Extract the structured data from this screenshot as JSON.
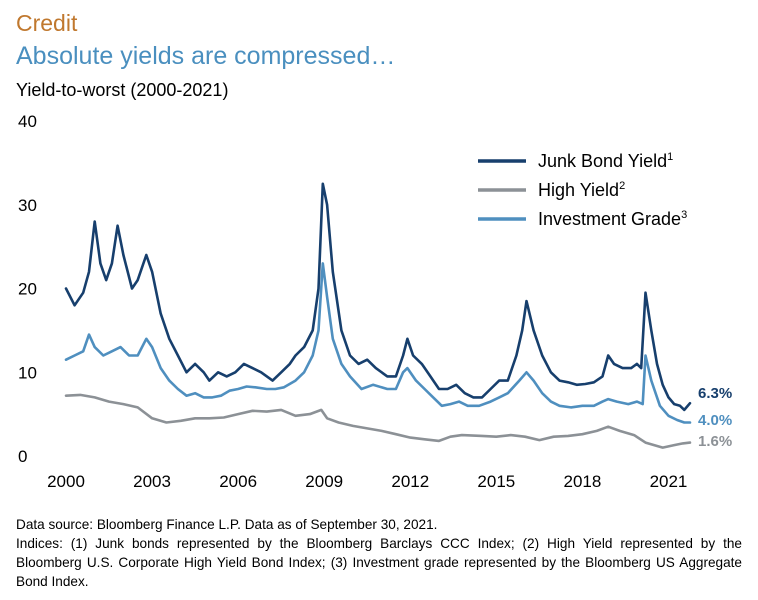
{
  "header": {
    "section": "Credit",
    "title": "Absolute yields are compressed…",
    "subtitle": "Yield-to-worst (2000-2021)"
  },
  "colors": {
    "junk": "#173f6d",
    "high_yield": "#8c9196",
    "investment_grade": "#4f8fbf"
  },
  "chart_data": {
    "type": "line",
    "title": "Yield-to-worst (2000-2021)",
    "xlabel": "",
    "ylabel": "",
    "xlim": [
      2000,
      2021.75
    ],
    "ylim": [
      0,
      40
    ],
    "x_ticks": [
      "2000",
      "2003",
      "2006",
      "2009",
      "2012",
      "2015",
      "2018",
      "2021"
    ],
    "y_ticks": [
      "0",
      "10",
      "20",
      "30",
      "40"
    ],
    "grid": false,
    "legend_position": "top-right",
    "series": [
      {
        "name": "Junk Bond Yield",
        "sup": "1",
        "color_key": "junk",
        "end_label": "6.3%",
        "points": [
          [
            2000.0,
            20
          ],
          [
            2000.3,
            18
          ],
          [
            2000.6,
            19.5
          ],
          [
            2000.8,
            22
          ],
          [
            2001.0,
            28
          ],
          [
            2001.2,
            23
          ],
          [
            2001.4,
            21
          ],
          [
            2001.6,
            23
          ],
          [
            2001.8,
            27.5
          ],
          [
            2002.0,
            24
          ],
          [
            2002.3,
            20
          ],
          [
            2002.5,
            21
          ],
          [
            2002.8,
            24
          ],
          [
            2003.0,
            22
          ],
          [
            2003.3,
            17
          ],
          [
            2003.6,
            14
          ],
          [
            2003.9,
            12
          ],
          [
            2004.2,
            10
          ],
          [
            2004.5,
            11
          ],
          [
            2004.8,
            10
          ],
          [
            2005.0,
            9
          ],
          [
            2005.3,
            10
          ],
          [
            2005.6,
            9.5
          ],
          [
            2005.9,
            10
          ],
          [
            2006.2,
            11
          ],
          [
            2006.5,
            10.5
          ],
          [
            2006.8,
            10
          ],
          [
            2007.2,
            9
          ],
          [
            2007.5,
            10
          ],
          [
            2007.8,
            11
          ],
          [
            2008.0,
            12
          ],
          [
            2008.3,
            13
          ],
          [
            2008.6,
            15
          ],
          [
            2008.8,
            20
          ],
          [
            2008.95,
            32.5
          ],
          [
            2009.1,
            30
          ],
          [
            2009.3,
            22
          ],
          [
            2009.6,
            15
          ],
          [
            2009.9,
            12
          ],
          [
            2010.2,
            11
          ],
          [
            2010.5,
            11.5
          ],
          [
            2010.8,
            10.5
          ],
          [
            2011.2,
            9.5
          ],
          [
            2011.5,
            9.5
          ],
          [
            2011.75,
            12
          ],
          [
            2011.9,
            14
          ],
          [
            2012.1,
            12
          ],
          [
            2012.4,
            11
          ],
          [
            2012.7,
            9.5
          ],
          [
            2013.0,
            8
          ],
          [
            2013.3,
            8
          ],
          [
            2013.6,
            8.5
          ],
          [
            2013.9,
            7.5
          ],
          [
            2014.2,
            7
          ],
          [
            2014.5,
            7
          ],
          [
            2014.8,
            8
          ],
          [
            2015.1,
            9
          ],
          [
            2015.4,
            9
          ],
          [
            2015.7,
            12
          ],
          [
            2015.9,
            15
          ],
          [
            2016.05,
            18.5
          ],
          [
            2016.3,
            15
          ],
          [
            2016.6,
            12
          ],
          [
            2016.9,
            10
          ],
          [
            2017.2,
            9
          ],
          [
            2017.5,
            8.8
          ],
          [
            2017.8,
            8.5
          ],
          [
            2018.1,
            8.6
          ],
          [
            2018.4,
            8.8
          ],
          [
            2018.7,
            9.5
          ],
          [
            2018.9,
            12
          ],
          [
            2019.1,
            11
          ],
          [
            2019.4,
            10.5
          ],
          [
            2019.7,
            10.5
          ],
          [
            2019.9,
            11
          ],
          [
            2020.05,
            10.5
          ],
          [
            2020.2,
            19.5
          ],
          [
            2020.4,
            15
          ],
          [
            2020.6,
            11
          ],
          [
            2020.8,
            8.5
          ],
          [
            2021.0,
            7
          ],
          [
            2021.2,
            6.2
          ],
          [
            2021.4,
            6.0
          ],
          [
            2021.55,
            5.5
          ],
          [
            2021.75,
            6.3
          ]
        ]
      },
      {
        "name": "High Yield",
        "sup": "2",
        "color_key": "high_yield",
        "end_label": "1.6%",
        "points": [
          [
            2000.0,
            7.2
          ],
          [
            2000.5,
            7.3
          ],
          [
            2001.0,
            7.0
          ],
          [
            2001.5,
            6.5
          ],
          [
            2002.0,
            6.2
          ],
          [
            2002.5,
            5.8
          ],
          [
            2003.0,
            4.5
          ],
          [
            2003.5,
            4.0
          ],
          [
            2004.0,
            4.2
          ],
          [
            2004.5,
            4.5
          ],
          [
            2005.0,
            4.5
          ],
          [
            2005.5,
            4.6
          ],
          [
            2006.0,
            5.0
          ],
          [
            2006.5,
            5.4
          ],
          [
            2007.0,
            5.3
          ],
          [
            2007.5,
            5.5
          ],
          [
            2008.0,
            4.8
          ],
          [
            2008.5,
            5.0
          ],
          [
            2008.9,
            5.5
          ],
          [
            2009.1,
            4.5
          ],
          [
            2009.5,
            4.0
          ],
          [
            2010.0,
            3.6
          ],
          [
            2010.5,
            3.3
          ],
          [
            2011.0,
            3.0
          ],
          [
            2011.5,
            2.6
          ],
          [
            2012.0,
            2.2
          ],
          [
            2012.5,
            2.0
          ],
          [
            2013.0,
            1.8
          ],
          [
            2013.4,
            2.3
          ],
          [
            2013.8,
            2.5
          ],
          [
            2014.5,
            2.4
          ],
          [
            2015.0,
            2.3
          ],
          [
            2015.5,
            2.5
          ],
          [
            2016.0,
            2.3
          ],
          [
            2016.5,
            1.9
          ],
          [
            2017.0,
            2.3
          ],
          [
            2017.5,
            2.4
          ],
          [
            2018.0,
            2.6
          ],
          [
            2018.5,
            3.0
          ],
          [
            2018.9,
            3.5
          ],
          [
            2019.3,
            3.0
          ],
          [
            2019.8,
            2.5
          ],
          [
            2020.2,
            1.6
          ],
          [
            2020.5,
            1.3
          ],
          [
            2020.8,
            1.0
          ],
          [
            2021.2,
            1.3
          ],
          [
            2021.5,
            1.5
          ],
          [
            2021.75,
            1.6
          ]
        ]
      },
      {
        "name": "Investment Grade",
        "sup": "3",
        "color_key": "investment_grade",
        "end_label": "4.0%",
        "points": [
          [
            2000.0,
            11.5
          ],
          [
            2000.3,
            12
          ],
          [
            2000.6,
            12.5
          ],
          [
            2000.8,
            14.5
          ],
          [
            2001.0,
            13
          ],
          [
            2001.3,
            12
          ],
          [
            2001.6,
            12.5
          ],
          [
            2001.9,
            13
          ],
          [
            2002.2,
            12
          ],
          [
            2002.5,
            12
          ],
          [
            2002.8,
            14
          ],
          [
            2003.0,
            13
          ],
          [
            2003.3,
            10.5
          ],
          [
            2003.6,
            9
          ],
          [
            2003.9,
            8
          ],
          [
            2004.2,
            7.2
          ],
          [
            2004.5,
            7.5
          ],
          [
            2004.8,
            7
          ],
          [
            2005.1,
            7
          ],
          [
            2005.4,
            7.2
          ],
          [
            2005.7,
            7.8
          ],
          [
            2006.0,
            8
          ],
          [
            2006.3,
            8.3
          ],
          [
            2006.6,
            8.2
          ],
          [
            2007.0,
            8
          ],
          [
            2007.3,
            8
          ],
          [
            2007.6,
            8.2
          ],
          [
            2008.0,
            9
          ],
          [
            2008.3,
            10
          ],
          [
            2008.6,
            12
          ],
          [
            2008.8,
            15
          ],
          [
            2008.95,
            23
          ],
          [
            2009.1,
            19
          ],
          [
            2009.3,
            14
          ],
          [
            2009.6,
            11
          ],
          [
            2009.9,
            9.5
          ],
          [
            2010.3,
            8
          ],
          [
            2010.7,
            8.5
          ],
          [
            2011.2,
            8
          ],
          [
            2011.5,
            8
          ],
          [
            2011.75,
            10
          ],
          [
            2011.9,
            10.5
          ],
          [
            2012.2,
            9
          ],
          [
            2012.5,
            8
          ],
          [
            2012.8,
            7
          ],
          [
            2013.1,
            6
          ],
          [
            2013.4,
            6.2
          ],
          [
            2013.7,
            6.5
          ],
          [
            2014.0,
            6
          ],
          [
            2014.4,
            6
          ],
          [
            2014.8,
            6.5
          ],
          [
            2015.1,
            7
          ],
          [
            2015.4,
            7.5
          ],
          [
            2015.8,
            9
          ],
          [
            2016.05,
            10
          ],
          [
            2016.3,
            9
          ],
          [
            2016.6,
            7.5
          ],
          [
            2016.9,
            6.5
          ],
          [
            2017.2,
            6
          ],
          [
            2017.6,
            5.8
          ],
          [
            2018.0,
            6
          ],
          [
            2018.4,
            6
          ],
          [
            2018.7,
            6.5
          ],
          [
            2018.9,
            6.8
          ],
          [
            2019.2,
            6.5
          ],
          [
            2019.6,
            6.2
          ],
          [
            2019.9,
            6.5
          ],
          [
            2020.1,
            6.2
          ],
          [
            2020.2,
            12
          ],
          [
            2020.4,
            9
          ],
          [
            2020.7,
            6
          ],
          [
            2021.0,
            4.8
          ],
          [
            2021.3,
            4.3
          ],
          [
            2021.55,
            4.0
          ],
          [
            2021.75,
            4.0
          ]
        ]
      }
    ]
  },
  "footnotes": {
    "source": "Data source: Bloomberg Finance L.P. Data as of September 30, 2021.",
    "indices": "Indices: (1) Junk bonds represented by the Bloomberg Barclays CCC Index; (2) High Yield represented by the Bloomberg U.S. Corporate High Yield Bond Index; (3) Investment grade represented by the Bloomberg US Aggregate Bond Index."
  }
}
